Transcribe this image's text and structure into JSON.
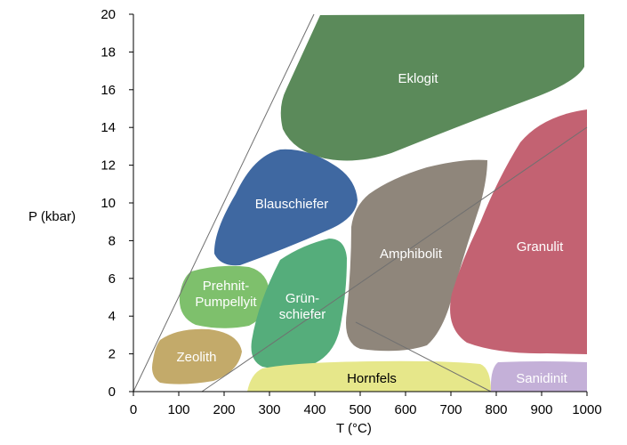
{
  "axes": {
    "x_label": "T (°C)",
    "y_label": "P (kbar)",
    "x_ticks": [
      "0",
      "100",
      "200",
      "300",
      "400",
      "500",
      "600",
      "700",
      "800",
      "900",
      "1000"
    ],
    "y_ticks": [
      "0",
      "2",
      "4",
      "6",
      "8",
      "10",
      "12",
      "14",
      "16",
      "18",
      "20"
    ],
    "x_range": [
      0,
      1000
    ],
    "y_range": [
      0,
      20
    ]
  },
  "facies": {
    "eklogit": {
      "label": "Eklogit",
      "color": "#5b8a5a"
    },
    "blauschiefer": {
      "label": "Blauschiefer",
      "color": "#3f68a1"
    },
    "amphibolit": {
      "label": "Amphibolit",
      "color": "#8f867b"
    },
    "granulit": {
      "label": "Granulit",
      "color": "#c36272"
    },
    "prehnit": {
      "label_line1": "Prehnit-",
      "label_line2": "Pumpellyit",
      "color": "#7ec06c"
    },
    "gruenschiefer": {
      "label_line1": "Grün-",
      "label_line2": "schiefer",
      "color": "#55ad7b"
    },
    "zeolith": {
      "label": "Zeolith",
      "color": "#c3aa6a"
    },
    "hornfels": {
      "label": "Hornfels",
      "color": "#e6e78a"
    },
    "sanidinit": {
      "label": "Sanidinit",
      "color": "#c4b0d8"
    }
  },
  "colors": {
    "grid_line": "#707070",
    "axis": "#000000"
  }
}
